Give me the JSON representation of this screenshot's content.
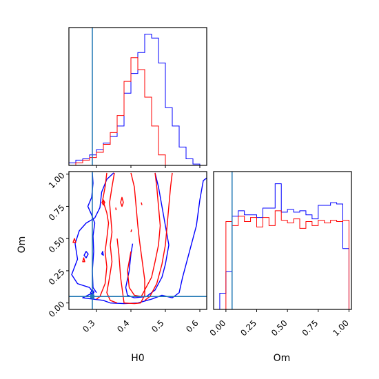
{
  "chart_data": {
    "type": "corner",
    "parameters": [
      "H0",
      "Om"
    ],
    "truth": {
      "H0": 0.288,
      "Om": 0.05
    },
    "colors": {
      "samples_a": "#0000ff",
      "samples_b": "#ff0000",
      "truth": "#1f77b4"
    },
    "panels": {
      "h0_hist": {
        "type": "step-histogram",
        "x_range": [
          0.22,
          0.62
        ],
        "y_ticks_shown": false,
        "series": [
          {
            "color": "#0000ff",
            "edges": [
              0.22,
              0.24,
              0.26,
              0.28,
              0.3,
              0.32,
              0.34,
              0.36,
              0.38,
              0.4,
              0.42,
              0.44,
              0.46,
              0.48,
              0.5,
              0.52,
              0.54,
              0.56,
              0.58,
              0.6
            ],
            "counts": [
              0.02,
              0.04,
              0.05,
              0.08,
              0.12,
              0.17,
              0.22,
              0.3,
              0.55,
              0.7,
              0.86,
              1.0,
              0.97,
              0.78,
              0.44,
              0.3,
              0.14,
              0.05,
              0.01
            ]
          },
          {
            "color": "#ff0000",
            "edges": [
              0.22,
              0.24,
              0.26,
              0.28,
              0.3,
              0.32,
              0.34,
              0.36,
              0.38,
              0.4,
              0.42,
              0.44,
              0.46,
              0.48,
              0.5
            ],
            "counts": [
              0.0,
              0.02,
              0.04,
              0.06,
              0.1,
              0.16,
              0.25,
              0.38,
              0.64,
              0.82,
              0.73,
              0.52,
              0.3,
              0.08
            ]
          }
        ]
      },
      "joint": {
        "type": "contour",
        "x_label": "H0",
        "y_label": "Om",
        "x_range": [
          0.22,
          0.62
        ],
        "y_range": [
          -0.05,
          1.02
        ],
        "x_ticks": [
          0.3,
          0.4,
          0.5,
          0.6
        ],
        "x_tick_labels": [
          "0.3",
          "0.4",
          "0.5",
          "0.6"
        ],
        "y_ticks": [
          0.0,
          0.25,
          0.5,
          0.75,
          1.0
        ],
        "y_tick_labels": [
          "0.00",
          "0.25",
          "0.50",
          "0.75",
          "1.00"
        ],
        "contours": [
          {
            "color": "#0000ff",
            "points": [
              [
                0.35,
                1.01
              ],
              [
                0.33,
                0.96
              ],
              [
                0.315,
                0.86
              ],
              [
                0.31,
                0.74
              ],
              [
                0.295,
                0.66
              ],
              [
                0.27,
                0.62
              ],
              [
                0.25,
                0.56
              ],
              [
                0.238,
                0.46
              ],
              [
                0.245,
                0.34
              ],
              [
                0.228,
                0.22
              ],
              [
                0.245,
                0.15
              ],
              [
                0.28,
                0.12
              ],
              [
                0.29,
                0.08
              ],
              [
                0.26,
                0.04
              ],
              [
                0.29,
                0.03
              ],
              [
                0.32,
                0.02
              ],
              [
                0.34,
                0.0
              ],
              [
                0.38,
                -0.005
              ],
              [
                0.42,
                0.0
              ],
              [
                0.46,
                0.03
              ],
              [
                0.49,
                0.06
              ],
              [
                0.52,
                0.04
              ],
              [
                0.54,
                0.08
              ],
              [
                0.55,
                0.2
              ],
              [
                0.57,
                0.4
              ],
              [
                0.59,
                0.6
              ],
              [
                0.6,
                0.8
              ],
              [
                0.61,
                0.95
              ],
              [
                0.62,
                0.97
              ]
            ]
          },
          {
            "color": "#0000ff",
            "points": [
              [
                0.47,
                1.01
              ],
              [
                0.48,
                0.9
              ],
              [
                0.49,
                0.75
              ],
              [
                0.5,
                0.6
              ],
              [
                0.51,
                0.45
              ],
              [
                0.5,
                0.3
              ],
              [
                0.49,
                0.2
              ],
              [
                0.47,
                0.1
              ],
              [
                0.445,
                0.05
              ],
              [
                0.41,
                0.04
              ],
              [
                0.39,
                0.06
              ],
              [
                0.385,
                0.12
              ],
              [
                0.395,
                0.25
              ],
              [
                0.4,
                0.38
              ],
              [
                0.405,
                0.46
              ]
            ]
          },
          {
            "color": "#0000ff",
            "points": [
              [
                0.288,
                1.01
              ],
              [
                0.29,
                0.93
              ],
              [
                0.286,
                0.82
              ],
              [
                0.275,
                0.75
              ],
              [
                0.285,
                0.69
              ],
              [
                0.295,
                0.62
              ],
              [
                0.29,
                0.52
              ],
              [
                0.292,
                0.4
              ],
              [
                0.288,
                0.25
              ],
              [
                0.29,
                0.12
              ],
              [
                0.3,
                0.08
              ]
            ]
          },
          {
            "color": "#0000ff",
            "closed": true,
            "points": [
              [
                0.264,
                0.37
              ],
              [
                0.27,
                0.4
              ],
              [
                0.276,
                0.38
              ],
              [
                0.27,
                0.35
              ]
            ]
          },
          {
            "color": "#0000ff",
            "closed": true,
            "points": [
              [
                0.315,
                0.38
              ],
              [
                0.318,
                0.4
              ],
              [
                0.32,
                0.37
              ]
            ]
          },
          {
            "color": "#0000ff",
            "closed": true,
            "points": [
              [
                0.283,
                0.08
              ],
              [
                0.288,
                0.1
              ],
              [
                0.293,
                0.085
              ],
              [
                0.288,
                0.06
              ]
            ]
          },
          {
            "color": "#ff0000",
            "points": [
              [
                0.4,
                1.01
              ],
              [
                0.41,
                0.9
              ],
              [
                0.415,
                0.75
              ],
              [
                0.42,
                0.6
              ],
              [
                0.425,
                0.48
              ],
              [
                0.43,
                0.38
              ],
              [
                0.435,
                0.28
              ],
              [
                0.44,
                0.18
              ],
              [
                0.44,
                0.06
              ],
              [
                0.428,
                0.0
              ],
              [
                0.41,
                -0.005
              ],
              [
                0.38,
                0.0
              ],
              [
                0.375,
                0.1
              ],
              [
                0.37,
                0.2
              ],
              [
                0.365,
                0.38
              ],
              [
                0.36,
                0.5
              ]
            ]
          },
          {
            "color": "#ff0000",
            "points": [
              [
                0.47,
                1.01
              ],
              [
                0.475,
                0.9
              ],
              [
                0.48,
                0.75
              ],
              [
                0.485,
                0.6
              ],
              [
                0.48,
                0.45
              ],
              [
                0.47,
                0.32
              ],
              [
                0.46,
                0.2
              ],
              [
                0.44,
                0.1
              ],
              [
                0.43,
                0.05
              ],
              [
                0.41,
                0.06
              ],
              [
                0.395,
                0.12
              ],
              [
                0.39,
                0.25
              ],
              [
                0.4,
                0.4
              ]
            ]
          },
          {
            "color": "#ff0000",
            "points": [
              [
                0.52,
                1.01
              ],
              [
                0.515,
                0.9
              ],
              [
                0.51,
                0.75
              ],
              [
                0.505,
                0.6
              ],
              [
                0.5,
                0.45
              ],
              [
                0.49,
                0.3
              ],
              [
                0.475,
                0.15
              ],
              [
                0.455,
                0.05
              ],
              [
                0.44,
                0.02
              ]
            ]
          },
          {
            "color": "#ff0000",
            "points": [
              [
                0.33,
                1.01
              ],
              [
                0.325,
                0.9
              ],
              [
                0.318,
                0.8
              ],
              [
                0.33,
                0.7
              ],
              [
                0.335,
                0.62
              ],
              [
                0.33,
                0.5
              ],
              [
                0.325,
                0.4
              ],
              [
                0.33,
                0.28
              ],
              [
                0.325,
                0.15
              ],
              [
                0.31,
                0.05
              ],
              [
                0.3,
                0.03
              ]
            ]
          },
          {
            "color": "#ff0000",
            "points": [
              [
                0.352,
                1.01
              ],
              [
                0.345,
                0.9
              ],
              [
                0.338,
                0.78
              ],
              [
                0.342,
                0.65
              ],
              [
                0.345,
                0.55
              ],
              [
                0.34,
                0.45
              ],
              [
                0.345,
                0.32
              ],
              [
                0.338,
                0.2
              ],
              [
                0.33,
                0.08
              ],
              [
                0.34,
                0.02
              ],
              [
                0.36,
                0.0
              ]
            ]
          },
          {
            "color": "#ff0000",
            "closed": true,
            "points": [
              [
                0.316,
                0.78
              ],
              [
                0.32,
                0.8
              ],
              [
                0.324,
                0.78
              ],
              [
                0.32,
                0.76
              ]
            ]
          },
          {
            "color": "#ff0000",
            "closed": true,
            "points": [
              [
                0.37,
                0.78
              ],
              [
                0.374,
                0.82
              ],
              [
                0.378,
                0.78
              ],
              [
                0.374,
                0.75
              ]
            ]
          },
          {
            "color": "#ff0000",
            "closed": true,
            "points": [
              [
                0.232,
                0.47
              ],
              [
                0.236,
                0.5
              ],
              [
                0.24,
                0.47
              ]
            ]
          },
          {
            "color": "#ff0000",
            "closed": true,
            "points": [
              [
                0.26,
                0.32
              ],
              [
                0.263,
                0.35
              ],
              [
                0.266,
                0.32
              ]
            ]
          },
          {
            "color": "#ff0000",
            "points": [
              [
                0.356,
                0.74
              ],
              [
                0.357,
                0.72
              ]
            ]
          },
          {
            "color": "#ff0000",
            "points": [
              [
                0.4,
                0.55
              ],
              [
                0.402,
                0.57
              ]
            ]
          },
          {
            "color": "#ff0000",
            "points": [
              [
                0.43,
                0.78
              ],
              [
                0.432,
                0.76
              ]
            ]
          }
        ]
      },
      "om_hist": {
        "type": "step-histogram",
        "x_label": "Om",
        "x_range": [
          -0.1,
          1.02
        ],
        "x_ticks": [
          0.0,
          0.25,
          0.5,
          0.75,
          1.0
        ],
        "x_tick_labels": [
          "0.00",
          "0.25",
          "0.50",
          "0.75",
          "1.00"
        ],
        "y_ticks_shown": false,
        "series": [
          {
            "color": "#0000ff",
            "edges": [
              -0.05,
              0.0,
              0.05,
              0.1,
              0.15,
              0.2,
              0.25,
              0.3,
              0.35,
              0.4,
              0.45,
              0.5,
              0.55,
              0.6,
              0.65,
              0.7,
              0.75,
              0.8,
              0.85,
              0.9,
              0.95,
              1.0
            ],
            "counts": [
              0.12,
              0.28,
              0.69,
              0.73,
              0.7,
              0.7,
              0.68,
              0.75,
              0.75,
              0.93,
              0.72,
              0.74,
              0.72,
              0.73,
              0.7,
              0.67,
              0.77,
              0.77,
              0.79,
              0.78,
              0.45
            ]
          },
          {
            "color": "#ff0000",
            "edges": [
              0.0,
              0.05,
              0.1,
              0.15,
              0.2,
              0.25,
              0.3,
              0.35,
              0.4,
              0.45,
              0.5,
              0.55,
              0.6,
              0.65,
              0.7,
              0.75,
              0.8,
              0.85,
              0.9,
              0.95,
              1.0
            ],
            "counts": [
              0.65,
              0.62,
              0.69,
              0.65,
              0.68,
              0.61,
              0.68,
              0.62,
              0.73,
              0.66,
              0.64,
              0.67,
              0.6,
              0.65,
              0.62,
              0.66,
              0.64,
              0.66,
              0.65,
              0.66
            ]
          }
        ]
      }
    }
  }
}
